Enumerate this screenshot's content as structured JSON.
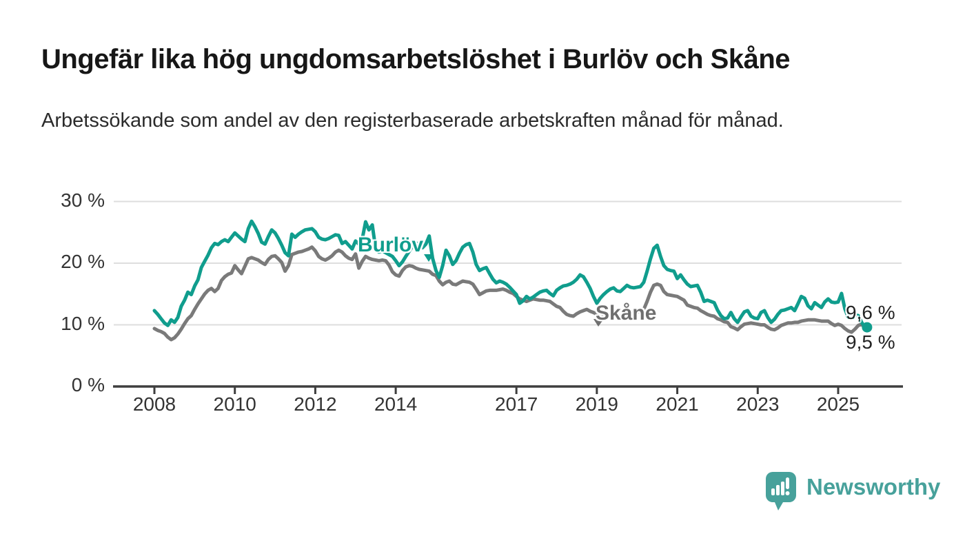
{
  "title": "Ungefär lika hög ungdomsarbetslöshet i Burlöv och Skåne",
  "subtitle": "Arbetssökande som andel av den registerbaserade arbetskraften månad för månad.",
  "footer": {
    "brand": "Newsworthy",
    "logo_icon": "newsworthy-speech-bubble-barchart-icon"
  },
  "colors": {
    "burlov_line": "#109d8d",
    "skane_line": "#7a7a7a",
    "grid": "#dedede",
    "axis": "#3e3e3e",
    "value_label": "#232323",
    "brand_teal": "#47a19b"
  },
  "chart_data": {
    "type": "line",
    "title": "Ungefär lika hög ungdomsarbetslöshet i Burlöv och Skåne",
    "subtitle": "Arbetssökande som andel av den registerbaserade arbetskraften månad för månad.",
    "unit": "%",
    "frequency": "monthly",
    "x_start": "2008-01",
    "x_end": "2025-09",
    "ylim": [
      0,
      30
    ],
    "grid": "horizontal",
    "legend_position": "inline-labels",
    "y_tick_labels": [
      "30 %",
      "20 %",
      "10 %",
      "0 %"
    ],
    "x_tick_labels": [
      "2008",
      "2010",
      "2012",
      "2014",
      "2017",
      "2019",
      "2021",
      "2023",
      "2025"
    ],
    "series": [
      {
        "name": "Burlöv",
        "color": "#109d8d",
        "end_label": "9,6 %",
        "end_marker": true,
        "values": [
          12.3,
          11.7,
          11.0,
          10.3,
          9.9,
          10.8,
          10.4,
          11.2,
          13.0,
          14.0,
          15.3,
          14.9,
          16.3,
          17.3,
          19.3,
          20.3,
          21.3,
          22.5,
          23.2,
          23.0,
          23.5,
          23.8,
          23.5,
          24.2,
          24.9,
          24.4,
          23.9,
          23.5,
          25.6,
          26.8,
          25.9,
          24.8,
          23.4,
          23.1,
          24.3,
          25.4,
          24.9,
          24.0,
          22.9,
          21.7,
          21.2,
          24.7,
          24.2,
          24.7,
          25.1,
          25.4,
          25.5,
          25.6,
          25.1,
          24.2,
          23.9,
          23.8,
          24.0,
          24.3,
          24.6,
          24.5,
          23.2,
          23.5,
          22.9,
          22.3,
          23.6,
          23.1,
          23.9,
          26.7,
          25.4,
          26.2,
          22.4,
          21.8,
          22.0,
          21.7,
          21.4,
          21.1,
          20.4,
          19.6,
          20.2,
          21.1,
          21.9,
          22.7,
          23.3,
          23.0,
          22.5,
          23.1,
          24.4,
          20.8,
          18.8,
          17.7,
          19.6,
          22.1,
          21.2,
          19.8,
          20.4,
          21.6,
          22.6,
          23.0,
          23.2,
          21.8,
          19.8,
          18.8,
          19.1,
          19.3,
          18.3,
          17.4,
          16.8,
          17.1,
          16.9,
          16.6,
          16.1,
          15.5,
          14.9,
          13.5,
          13.9,
          14.6,
          14.2,
          14.5,
          14.9,
          15.3,
          15.5,
          15.6,
          15.1,
          14.7,
          15.6,
          16.0,
          16.3,
          16.4,
          16.6,
          16.9,
          17.4,
          18.1,
          17.8,
          16.9,
          15.9,
          14.6,
          13.5,
          14.3,
          14.9,
          15.4,
          15.8,
          16.0,
          15.5,
          15.4,
          15.9,
          16.4,
          16.1,
          16.0,
          16.1,
          16.2,
          16.9,
          18.7,
          20.7,
          22.4,
          22.9,
          21.1,
          19.6,
          19.0,
          18.8,
          18.7,
          17.5,
          18.1,
          17.3,
          16.6,
          16.2,
          16.3,
          16.4,
          15.3,
          13.8,
          14.0,
          13.8,
          13.6,
          12.4,
          11.5,
          11.0,
          11.1,
          12.0,
          11.0,
          10.4,
          11.3,
          12.1,
          12.3,
          11.4,
          11.1,
          11.0,
          12.0,
          12.3,
          11.2,
          10.4,
          10.9,
          11.7,
          12.3,
          12.4,
          12.6,
          12.8,
          12.3,
          13.4,
          14.6,
          14.3,
          13.1,
          12.6,
          13.6,
          13.2,
          12.8,
          13.7,
          14.2,
          13.7,
          13.6,
          13.7,
          15.1,
          12.6,
          11.2,
          11.0,
          11.6,
          11.5,
          10.4,
          9.6
        ]
      },
      {
        "name": "Skåne",
        "color": "#7a7a7a",
        "end_label": "9,5 %",
        "end_marker": false,
        "values": [
          9.4,
          9.1,
          8.9,
          8.6,
          8.0,
          7.6,
          7.9,
          8.5,
          9.3,
          10.2,
          11.0,
          11.5,
          12.5,
          13.4,
          14.2,
          15.0,
          15.6,
          15.9,
          15.4,
          15.9,
          17.2,
          17.8,
          18.2,
          18.4,
          19.6,
          18.9,
          18.3,
          19.5,
          20.7,
          20.9,
          20.7,
          20.5,
          20.1,
          19.8,
          20.6,
          21.1,
          21.2,
          20.7,
          20.1,
          18.7,
          19.6,
          21.4,
          21.6,
          21.8,
          21.9,
          22.1,
          22.3,
          22.6,
          22.0,
          21.1,
          20.7,
          20.5,
          20.8,
          21.2,
          21.8,
          22.1,
          21.8,
          21.2,
          20.8,
          20.6,
          21.5,
          19.2,
          20.3,
          21.1,
          20.8,
          20.6,
          20.5,
          20.4,
          20.5,
          20.4,
          19.7,
          18.6,
          18.1,
          17.9,
          18.8,
          19.4,
          19.6,
          19.5,
          19.2,
          19.0,
          18.9,
          18.8,
          18.7,
          18.2,
          18.0,
          17.1,
          16.5,
          16.9,
          17.1,
          16.6,
          16.5,
          16.8,
          17.1,
          17.0,
          16.9,
          16.6,
          15.8,
          14.9,
          15.2,
          15.5,
          15.6,
          15.6,
          15.6,
          15.7,
          15.8,
          15.6,
          15.3,
          15.1,
          14.6,
          14.2,
          14.0,
          13.8,
          14.0,
          14.2,
          14.1,
          14.0,
          14.0,
          13.9,
          13.8,
          13.4,
          13.0,
          12.8,
          12.2,
          11.7,
          11.5,
          11.4,
          11.8,
          12.1,
          12.3,
          12.5,
          12.2,
          12.0,
          11.7,
          11.2,
          11.3,
          11.4,
          11.4,
          11.5,
          11.5,
          11.4,
          11.6,
          11.9,
          12.0,
          12.0,
          12.1,
          12.1,
          12.5,
          13.8,
          15.3,
          16.4,
          16.6,
          16.4,
          15.4,
          14.9,
          14.8,
          14.7,
          14.6,
          14.3,
          14.0,
          13.2,
          13.0,
          12.8,
          12.7,
          12.3,
          12.0,
          11.7,
          11.5,
          11.4,
          11.0,
          10.8,
          10.5,
          10.4,
          9.7,
          9.5,
          9.2,
          9.7,
          10.1,
          10.2,
          10.3,
          10.2,
          10.1,
          10.0,
          10.0,
          9.6,
          9.3,
          9.2,
          9.5,
          9.9,
          10.1,
          10.3,
          10.3,
          10.4,
          10.4,
          10.6,
          10.7,
          10.8,
          10.8,
          10.8,
          10.7,
          10.6,
          10.6,
          10.6,
          10.2,
          9.9,
          10.1,
          9.9,
          9.4,
          9.0,
          8.8,
          9.3,
          9.9,
          10.1,
          9.5
        ]
      }
    ]
  }
}
